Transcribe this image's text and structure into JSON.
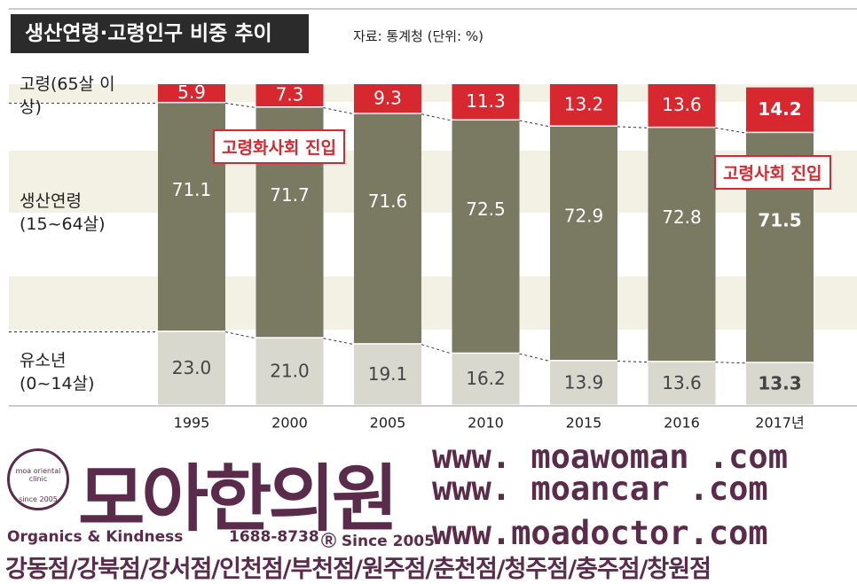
{
  "chart_data": {
    "type": "stacked_bar",
    "title": "생산연령·고령인구 비중 추이",
    "source": "자료: 통계청 (단위: %)",
    "categories": [
      "1995",
      "2000",
      "2005",
      "2010",
      "2015",
      "2016",
      "2017년"
    ],
    "ylim": [
      0,
      100
    ],
    "series": [
      {
        "name": "유소년 (0~14살)",
        "color": "#d8d8cf",
        "values": [
          23.0,
          21.0,
          19.1,
          16.2,
          13.9,
          13.6,
          13.3
        ],
        "value_labels": [
          "23.0",
          "21.0",
          "19.1",
          "16.2",
          "13.9",
          "13.6",
          "13.3"
        ]
      },
      {
        "name": "생산연령 (15~64살)",
        "color": "#7a7962",
        "values": [
          71.1,
          71.7,
          71.6,
          72.5,
          72.9,
          72.8,
          71.5
        ],
        "value_labels": [
          "71.1",
          "71.7",
          "71.6",
          "72.5",
          "72.9",
          "72.8",
          "71.5"
        ]
      },
      {
        "name": "고령(65살 이상)",
        "color": "#d7282f",
        "values": [
          5.9,
          7.3,
          9.3,
          11.3,
          13.2,
          13.6,
          14.2
        ],
        "value_labels": [
          "5.9",
          "7.3",
          "9.3",
          "11.3",
          "13.2",
          "13.6",
          "14.2"
        ]
      }
    ],
    "annotations": [
      "고령화사회 진입",
      "고령사회 진입"
    ]
  },
  "footer": {
    "logo": "모아한의원",
    "badge": [
      "moa oriental clinic",
      "since 2005"
    ],
    "slogan": "Organics & Kindness",
    "phone": "1688-8738",
    "since": "Ⓡ Since 2005",
    "urls": [
      "www. moawoman .com",
      "www. moancar .com",
      "www.moadoctor.com"
    ],
    "branches": "강동점/강북점/강서점/인천점/부천점/원주점/춘천점/청주점/충주점/창원점"
  }
}
